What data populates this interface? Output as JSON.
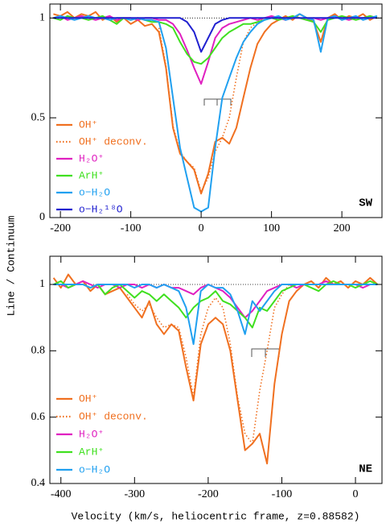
{
  "xlabel": "Velocity (km/s, heliocentric frame, z=0.88582)",
  "ylabel": "Line / Continuum",
  "chart_data": [
    {
      "type": "line",
      "panel_label": "SW",
      "xlim": [
        -215,
        257
      ],
      "ylim": [
        0,
        1.07
      ],
      "xticks": [
        -200,
        -100,
        0,
        100,
        200
      ],
      "yticks": [
        0,
        0.5,
        1
      ],
      "reference_line": 1,
      "x": [
        -210,
        -200,
        -190,
        -180,
        -170,
        -160,
        -150,
        -140,
        -130,
        -120,
        -110,
        -100,
        -90,
        -80,
        -70,
        -60,
        -50,
        -40,
        -30,
        -20,
        -10,
        0,
        10,
        20,
        30,
        40,
        50,
        60,
        70,
        80,
        90,
        100,
        110,
        120,
        130,
        140,
        150,
        160,
        170,
        180,
        190,
        200,
        210,
        220,
        230,
        240,
        250
      ],
      "series": [
        {
          "name": "OH⁺",
          "color": "#f07020",
          "style": "solid",
          "values": [
            1.02,
            1.01,
            1.03,
            1.0,
            1.02,
            1.01,
            1.03,
            0.99,
            1.01,
            0.98,
            1.0,
            0.97,
            0.99,
            0.96,
            0.97,
            0.93,
            0.75,
            0.45,
            0.32,
            0.28,
            0.24,
            0.12,
            0.22,
            0.38,
            0.4,
            0.37,
            0.45,
            0.6,
            0.75,
            0.87,
            0.93,
            0.97,
            0.99,
            1.01,
            0.99,
            1.02,
            1.0,
            0.98,
            0.88,
            1.0,
            1.02,
            0.99,
            1.01,
            1.0,
            1.02,
            0.99,
            1.01
          ]
        },
        {
          "name": "OH⁺ deconv.",
          "color": "#f07020",
          "style": "dotted",
          "values": [
            null,
            null,
            null,
            null,
            null,
            null,
            null,
            null,
            null,
            null,
            null,
            null,
            null,
            null,
            null,
            0.95,
            0.76,
            0.46,
            0.33,
            0.28,
            0.25,
            0.13,
            0.2,
            0.33,
            0.4,
            0.5,
            0.7,
            0.88,
            0.95,
            0.98,
            1.0,
            null,
            null,
            null,
            null,
            null,
            null,
            null,
            null,
            null,
            null,
            null,
            null,
            null,
            null,
            null,
            null
          ]
        },
        {
          "name": "H₂O⁺",
          "color": "#e020c0",
          "style": "solid",
          "values": [
            1.0,
            1.01,
            0.99,
            1.0,
            1.01,
            1.0,
            0.99,
            1.0,
            1.01,
            0.99,
            1.0,
            1.0,
            0.99,
            1.0,
            1.0,
            0.99,
            0.99,
            0.97,
            0.92,
            0.84,
            0.75,
            0.67,
            0.78,
            0.9,
            0.95,
            0.97,
            0.98,
            0.99,
            1.0,
            0.99,
            1.0,
            1.01,
            1.0,
            0.99,
            1.0,
            1.0,
            0.99,
            1.0,
            0.99,
            1.0,
            1.01,
            1.0,
            0.99,
            1.0,
            1.0,
            1.01,
            1.0
          ]
        },
        {
          "name": "ArH⁺",
          "color": "#40e020",
          "style": "solid",
          "values": [
            1.0,
            0.99,
            1.01,
            1.0,
            1.0,
            0.99,
            1.0,
            1.01,
            0.99,
            0.97,
            1.0,
            0.99,
            1.0,
            0.99,
            0.98,
            0.98,
            0.97,
            0.95,
            0.88,
            0.82,
            0.78,
            0.77,
            0.8,
            0.85,
            0.9,
            0.93,
            0.95,
            0.97,
            0.97,
            0.98,
            0.99,
            1.0,
            0.99,
            1.0,
            1.01,
            1.0,
            0.99,
            0.98,
            0.93,
            0.99,
            1.0,
            1.01,
            1.0,
            0.99,
            1.0,
            1.01,
            1.0
          ]
        },
        {
          "name": "o−H₂O",
          "color": "#20a0f0",
          "style": "solid",
          "values": [
            1.0,
            1.01,
            1.0,
            0.99,
            1.0,
            1.01,
            1.0,
            1.0,
            0.99,
            1.0,
            1.0,
            0.99,
            1.0,
            0.99,
            0.99,
            0.98,
            0.85,
            0.6,
            0.35,
            0.2,
            0.05,
            0.03,
            0.05,
            0.35,
            0.6,
            0.7,
            0.8,
            0.88,
            0.93,
            0.97,
            0.99,
            1.0,
            1.01,
            0.99,
            1.0,
            1.02,
            1.0,
            0.99,
            0.83,
            1.0,
            1.01,
            0.99,
            1.0,
            1.01,
            0.99,
            1.0,
            1.01
          ]
        },
        {
          "name": "o−H₂¹⁸O",
          "color": "#2020d0",
          "style": "solid",
          "values": [
            1.0,
            1.0,
            1.0,
            1.0,
            1.0,
            1.0,
            1.0,
            1.0,
            1.0,
            1.0,
            1.0,
            1.0,
            1.0,
            1.0,
            1.0,
            1.0,
            1.0,
            1.0,
            1.0,
            0.98,
            0.93,
            0.83,
            0.9,
            0.97,
            0.99,
            1.0,
            1.0,
            1.0,
            1.0,
            1.0,
            1.0,
            1.0,
            1.0,
            1.0,
            1.0,
            1.0,
            1.0,
            1.0,
            1.0,
            1.0,
            1.0,
            1.0,
            1.0,
            1.0,
            1.0,
            1.0,
            1.0
          ]
        }
      ]
    },
    {
      "type": "line",
      "panel_label": "NE",
      "xlim": [
        -415,
        36
      ],
      "ylim": [
        0.4,
        1.085
      ],
      "xticks": [
        -400,
        -300,
        -200,
        -100,
        0
      ],
      "yticks": [
        0.4,
        0.6,
        0.8,
        1
      ],
      "reference_line": 1,
      "x": [
        -410,
        -400,
        -390,
        -380,
        -370,
        -360,
        -350,
        -340,
        -330,
        -320,
        -310,
        -300,
        -290,
        -280,
        -270,
        -260,
        -250,
        -240,
        -230,
        -220,
        -210,
        -200,
        -190,
        -180,
        -170,
        -160,
        -150,
        -140,
        -130,
        -120,
        -110,
        -100,
        -90,
        -80,
        -70,
        -60,
        -50,
        -40,
        -30,
        -20,
        -10,
        0,
        10,
        20,
        30
      ],
      "series": [
        {
          "name": "OH⁺",
          "color": "#f07020",
          "style": "solid",
          "values": [
            1.02,
            0.99,
            1.03,
            1.0,
            1.01,
            0.98,
            1.0,
            0.97,
            0.98,
            0.99,
            0.96,
            0.93,
            0.9,
            0.95,
            0.88,
            0.85,
            0.88,
            0.86,
            0.75,
            0.65,
            0.82,
            0.88,
            0.9,
            0.88,
            0.8,
            0.65,
            0.5,
            0.52,
            0.55,
            0.46,
            0.7,
            0.85,
            0.95,
            0.98,
            1.0,
            1.01,
            0.99,
            1.02,
            1.0,
            1.01,
            0.99,
            1.01,
            1.0,
            1.02,
            1.0
          ]
        },
        {
          "name": "OH⁺ deconv.",
          "color": "#f07020",
          "style": "dotted",
          "values": [
            null,
            null,
            null,
            null,
            null,
            null,
            null,
            null,
            null,
            null,
            0.97,
            0.94,
            0.92,
            0.94,
            0.9,
            0.87,
            0.88,
            0.87,
            0.78,
            0.66,
            0.85,
            0.93,
            0.96,
            0.93,
            0.82,
            0.66,
            0.55,
            0.52,
            0.68,
            0.8,
            0.93,
            0.97,
            1.0,
            null,
            null,
            null,
            null,
            null,
            null,
            null,
            null,
            null,
            null,
            null,
            null
          ]
        },
        {
          "name": "H₂O⁺",
          "color": "#e020c0",
          "style": "solid",
          "values": [
            1.0,
            1.0,
            0.99,
            1.0,
            1.01,
            1.0,
            0.99,
            1.0,
            1.0,
            0.99,
            1.0,
            1.0,
            0.99,
            1.0,
            0.99,
            1.0,
            0.99,
            0.99,
            0.98,
            0.97,
            0.99,
            1.0,
            0.99,
            0.98,
            0.96,
            0.93,
            0.9,
            0.92,
            0.95,
            0.98,
            0.99,
            1.0,
            1.0,
            0.99,
            1.0,
            1.0,
            1.0,
            1.01,
            1.0,
            1.0,
            1.0,
            1.0,
            0.99,
            1.0,
            1.0
          ]
        },
        {
          "name": "ArH⁺",
          "color": "#40e020",
          "style": "solid",
          "values": [
            1.0,
            1.01,
            0.99,
            1.0,
            1.0,
            0.99,
            1.0,
            0.97,
            0.99,
            1.0,
            0.98,
            0.96,
            0.98,
            0.97,
            0.95,
            0.97,
            0.95,
            0.93,
            0.9,
            0.93,
            0.95,
            0.96,
            0.98,
            0.95,
            0.94,
            0.92,
            0.9,
            0.87,
            0.93,
            0.92,
            0.95,
            0.98,
            0.99,
            1.0,
            1.0,
            0.99,
            0.98,
            1.0,
            1.01,
            1.0,
            1.0,
            0.99,
            1.0,
            1.01,
            1.0
          ]
        },
        {
          "name": "o−H₂O",
          "color": "#20a0f0",
          "style": "solid",
          "values": [
            1.0,
            1.0,
            1.0,
            1.0,
            1.0,
            0.99,
            1.0,
            1.0,
            1.0,
            1.0,
            1.0,
            0.99,
            1.0,
            1.0,
            0.99,
            1.0,
            0.99,
            0.98,
            0.93,
            0.82,
            0.98,
            1.0,
            0.99,
            0.99,
            0.97,
            0.92,
            0.85,
            0.95,
            0.92,
            0.95,
            0.98,
            1.0,
            1.0,
            1.0,
            1.0,
            1.0,
            1.0,
            1.0,
            1.0,
            1.0,
            1.0,
            1.0,
            1.0,
            1.0,
            1.0
          ]
        }
      ]
    }
  ]
}
